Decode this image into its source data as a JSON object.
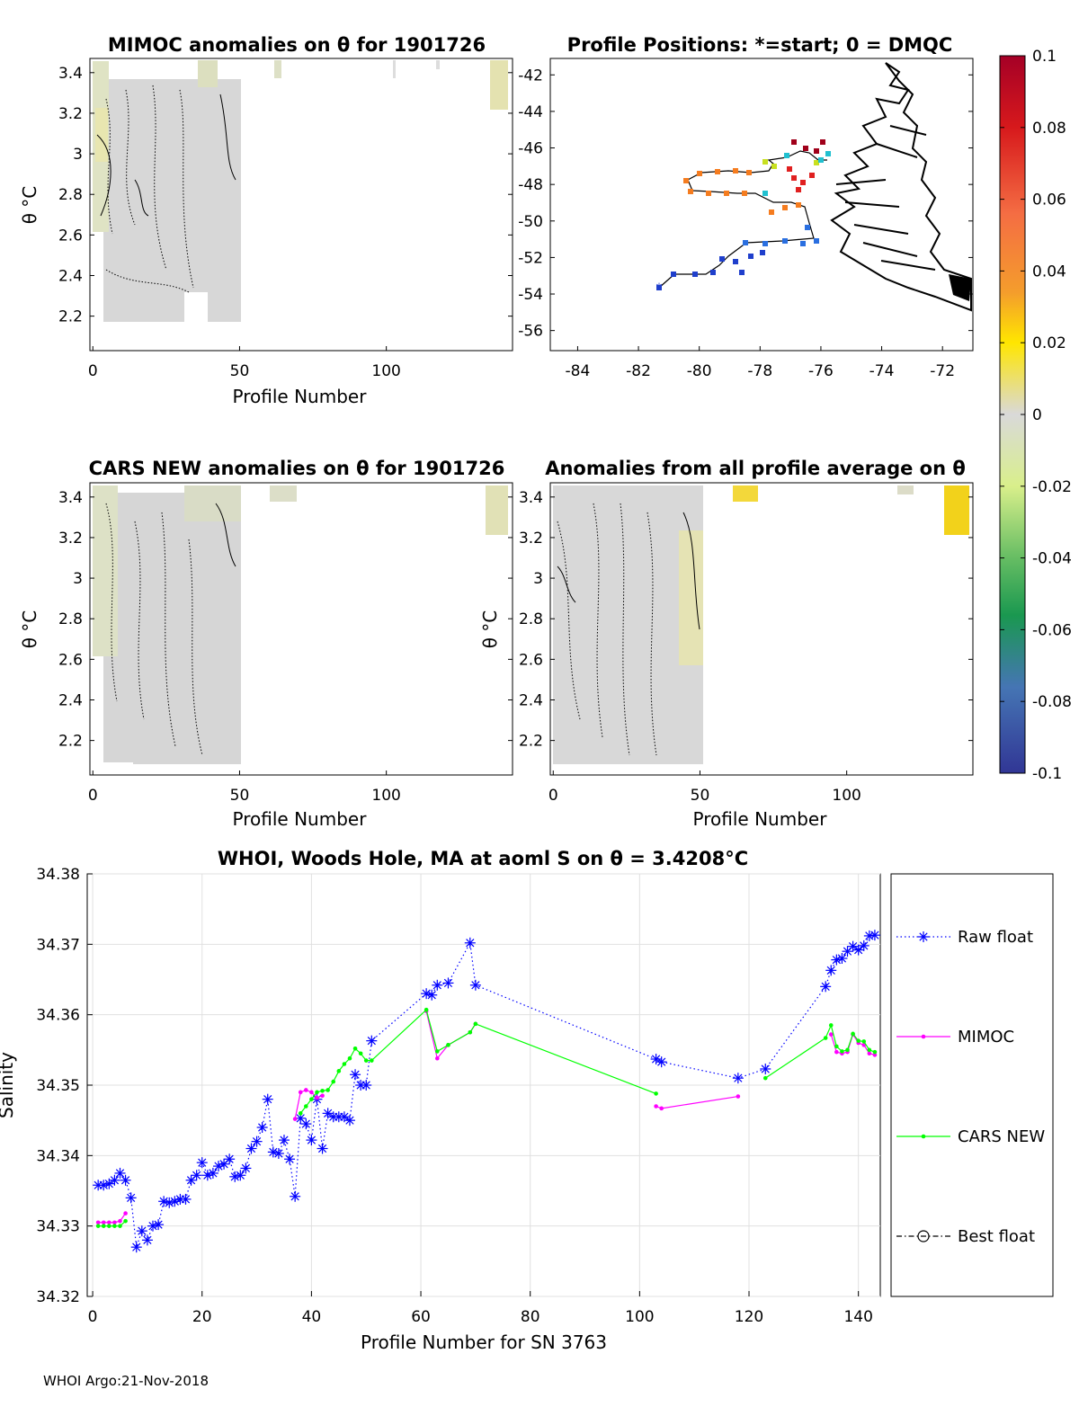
{
  "colorbar": {
    "ticks": [
      "0.1",
      "0.08",
      "0.06",
      "0.04",
      "0.02",
      "0",
      "-0.02",
      "-0.04",
      "-0.06",
      "-0.08",
      "-0.1"
    ],
    "colors": [
      "#a50026",
      "#d7191c",
      "#f46d43",
      "#fdae61",
      "#ffe600",
      "#d9d9d9",
      "#d9ef8b",
      "#66bd63",
      "#1a9850",
      "#4575b4",
      "#313695"
    ]
  },
  "panels": {
    "mimoc": {
      "title": "MIMOC anomalies on θ  for 1901726",
      "ylabel": "θ °C",
      "xlabel": "Profile Number",
      "yticks": [
        "3.4",
        "3.2",
        "3",
        "2.8",
        "2.6",
        "2.4",
        "2.2"
      ],
      "xticks": [
        "0",
        "50",
        "100"
      ]
    },
    "positions": {
      "title": "Profile Positions: *=start; 0 = DMQC",
      "yticks": [
        "-42",
        "-44",
        "-46",
        "-48",
        "-50",
        "-52",
        "-54",
        "-56"
      ],
      "xticks": [
        "-84",
        "-82",
        "-80",
        "-78",
        "-76",
        "-74",
        "-72"
      ]
    },
    "cars": {
      "title": "CARS NEW anomalies on θ for 1901726",
      "ylabel": "θ °C",
      "xlabel": "Profile Number",
      "yticks": [
        "3.4",
        "3.2",
        "3",
        "2.8",
        "2.6",
        "2.4",
        "2.2"
      ],
      "xticks": [
        "0",
        "50",
        "100"
      ]
    },
    "allavg": {
      "title": "Anomalies from all profile average on θ",
      "ylabel": "θ °C",
      "xlabel": "Profile Number",
      "yticks": [
        "3.4",
        "3.2",
        "3",
        "2.8",
        "2.6",
        "2.4",
        "2.2"
      ],
      "xticks": [
        "0",
        "50",
        "100"
      ]
    }
  },
  "chart_data": {
    "type": "line",
    "title": "WHOI, Woods Hole, MA at aoml S on θ = 3.4208°C",
    "xlabel": "Profile Number for SN 3763",
    "ylabel": "Salinity",
    "xlim": [
      -1,
      144
    ],
    "ylim": [
      34.32,
      34.38
    ],
    "xticks": [
      0,
      20,
      40,
      60,
      80,
      100,
      120,
      140
    ],
    "yticks": [
      34.32,
      34.33,
      34.34,
      34.35,
      34.36,
      34.37,
      34.38
    ],
    "ytick_labels": [
      "34.32",
      "34.33",
      "34.34",
      "34.35",
      "34.36",
      "34.37",
      "34.38"
    ],
    "grid": true,
    "legend": [
      "Raw float",
      "MIMOC",
      "CARS NEW",
      "Best float"
    ],
    "series": [
      {
        "name": "Raw float",
        "color": "#0000ff",
        "style": "dotted-star",
        "x": [
          1,
          2,
          3,
          4,
          5,
          6,
          7,
          8,
          9,
          10,
          11,
          12,
          13,
          14,
          15,
          16,
          17,
          18,
          19,
          20,
          21,
          22,
          23,
          24,
          25,
          26,
          27,
          28,
          29,
          30,
          31,
          32,
          33,
          34,
          35,
          36,
          37,
          38,
          39,
          40,
          41,
          42,
          43,
          44,
          45,
          46,
          47,
          48,
          49,
          50,
          51,
          61,
          62,
          63,
          65,
          69,
          70,
          103,
          104,
          118,
          123,
          134,
          135,
          136,
          137,
          138,
          139,
          140,
          141,
          142,
          143
        ],
        "y": [
          34.3358,
          34.3358,
          34.336,
          34.3365,
          34.3375,
          34.3365,
          34.334,
          34.327,
          34.3293,
          34.328,
          34.33,
          34.3302,
          34.3335,
          34.3333,
          34.3335,
          34.3338,
          34.3338,
          34.3365,
          34.3372,
          34.339,
          34.3372,
          34.3375,
          34.3385,
          34.3388,
          34.3395,
          34.337,
          34.3372,
          34.3382,
          34.341,
          34.342,
          34.344,
          34.348,
          34.3405,
          34.3403,
          34.3422,
          34.3395,
          34.3342,
          34.3453,
          34.3445,
          34.3422,
          34.348,
          34.341,
          34.346,
          34.3455,
          34.3455,
          34.3455,
          34.345,
          34.3515,
          34.35,
          34.35,
          34.3563,
          34.363,
          34.3628,
          34.3642,
          34.3645,
          34.3702,
          34.3642,
          34.3537,
          34.3533,
          34.351,
          34.3523,
          34.364,
          34.3663,
          34.3678,
          34.368,
          34.369,
          34.3697,
          34.3692,
          34.3698,
          34.3712,
          34.3713
        ]
      },
      {
        "name": "MIMOC",
        "color": "#ff00ff",
        "style": "solid-dot",
        "x": [
          1,
          2,
          3,
          4,
          5,
          6,
          null,
          37,
          38,
          39,
          40,
          41,
          42,
          null,
          61,
          63,
          65,
          69,
          70,
          null,
          103,
          104,
          118,
          null,
          135,
          136,
          137,
          138,
          139,
          140,
          141,
          142,
          143
        ],
        "y": [
          34.3305,
          34.3305,
          34.3305,
          34.3305,
          34.3307,
          34.3318,
          null,
          34.3452,
          34.349,
          34.3493,
          34.349,
          34.3482,
          34.3485,
          null,
          34.3605,
          34.3538,
          34.3557,
          34.3575,
          34.3587,
          null,
          34.347,
          34.3467,
          34.3484,
          null,
          34.3572,
          34.3547,
          34.3545,
          34.3547,
          34.3572,
          34.356,
          34.3557,
          34.3545,
          34.3543
        ]
      },
      {
        "name": "CARS NEW",
        "color": "#00ff00",
        "style": "solid-dot",
        "x": [
          1,
          2,
          3,
          4,
          5,
          6,
          null,
          38,
          39,
          40,
          41,
          42,
          43,
          44,
          45,
          46,
          47,
          48,
          49,
          50,
          51,
          61,
          63,
          65,
          69,
          70,
          103,
          null,
          123,
          134,
          135,
          136,
          137,
          138,
          139,
          140,
          141,
          142,
          143
        ],
        "y": [
          34.33,
          34.33,
          34.33,
          34.33,
          34.33,
          34.3307,
          null,
          34.346,
          34.347,
          34.348,
          34.349,
          34.3492,
          34.3493,
          34.3505,
          34.352,
          34.353,
          34.3538,
          34.3552,
          34.3545,
          34.3535,
          34.3535,
          34.3607,
          34.3548,
          34.3557,
          34.3575,
          34.3587,
          34.3488,
          null,
          34.351,
          34.3567,
          34.3585,
          34.3555,
          34.3548,
          34.355,
          34.3573,
          34.3563,
          34.3562,
          34.355,
          34.3547
        ]
      },
      {
        "name": "Best float",
        "color": "#000000",
        "style": "dashdot-circle",
        "x": [],
        "y": []
      }
    ]
  },
  "footer": "WHOI Argo:21-Nov-2018"
}
